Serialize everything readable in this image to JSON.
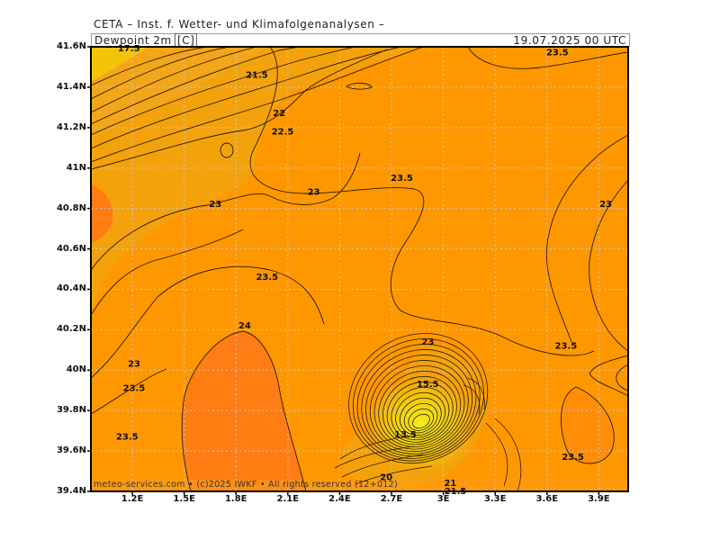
{
  "header": {
    "institute": "CETA – Inst. f. Wetter- und Klimafolgenanalysen –",
    "field": "Dewpoint 2m",
    "unit": "[C]",
    "datetime": "19.07.2025 00 UTC"
  },
  "footer": {
    "credit": "meteo-services.com • (c)2025 IWKF • All rights reserved (12+012)"
  },
  "axes": {
    "lat_labels": [
      "41.6N",
      "41.4N",
      "41.2N",
      "41N",
      "40.8N",
      "40.6N",
      "40.4N",
      "40.2N",
      "40N",
      "39.8N",
      "39.6N",
      "39.4N"
    ],
    "lon_labels": [
      "1.2E",
      "1.5E",
      "1.8E",
      "2.1E",
      "2.4E",
      "2.7E",
      "3E",
      "3.3E",
      "3.6E",
      "3.9E"
    ]
  },
  "colors": {
    "dewpoint_17_19": "#f3c40a",
    "dewpoint_19_21": "#f4a61a",
    "dewpoint_21_23": "#f4a20c",
    "dewpoint_23_24": "#ff9800",
    "dewpoint_24_plus": "#ff7d12",
    "minimum_core": "#f4ee20",
    "contour": "#2a1a00"
  },
  "contour_labels": [
    {
      "text": "17.5",
      "lat": 41.59,
      "lon": 1.18
    },
    {
      "text": "21.5",
      "lat": 41.46,
      "lon": 1.92
    },
    {
      "text": "22",
      "lat": 41.27,
      "lon": 2.05
    },
    {
      "text": "22.5",
      "lat": 41.18,
      "lon": 2.07
    },
    {
      "text": "23.5",
      "lat": 41.57,
      "lon": 3.66
    },
    {
      "text": "23.5",
      "lat": 40.95,
      "lon": 2.76
    },
    {
      "text": "23",
      "lat": 40.88,
      "lon": 2.25
    },
    {
      "text": "23",
      "lat": 40.82,
      "lon": 1.68
    },
    {
      "text": "23",
      "lat": 40.82,
      "lon": 3.94
    },
    {
      "text": "23.5",
      "lat": 40.46,
      "lon": 1.98
    },
    {
      "text": "24",
      "lat": 40.22,
      "lon": 1.85
    },
    {
      "text": "23",
      "lat": 40.03,
      "lon": 1.21
    },
    {
      "text": "23.5",
      "lat": 39.91,
      "lon": 1.21
    },
    {
      "text": "23.5",
      "lat": 39.67,
      "lon": 1.17
    },
    {
      "text": "23.5",
      "lat": 40.12,
      "lon": 3.71
    },
    {
      "text": "23.5",
      "lat": 39.57,
      "lon": 3.75
    },
    {
      "text": "23",
      "lat": 40.14,
      "lon": 2.91
    },
    {
      "text": "15.5",
      "lat": 39.93,
      "lon": 2.91
    },
    {
      "text": "13.5",
      "lat": 39.68,
      "lon": 2.78
    },
    {
      "text": "20",
      "lat": 39.47,
      "lon": 2.67
    },
    {
      "text": "21",
      "lat": 39.44,
      "lon": 3.04
    },
    {
      "text": "21.5",
      "lat": 39.4,
      "lon": 3.07
    }
  ]
}
